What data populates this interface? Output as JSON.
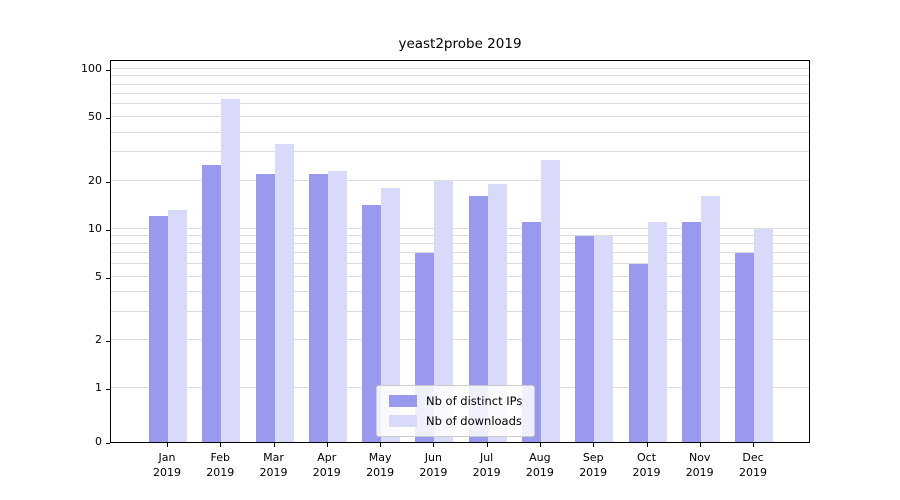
{
  "chart_data": {
    "type": "bar",
    "title": "yeast2probe 2019",
    "categories": [
      "Jan",
      "Feb",
      "Mar",
      "Apr",
      "May",
      "Jun",
      "Jul",
      "Aug",
      "Sep",
      "Oct",
      "Nov",
      "Dec"
    ],
    "year_label": "2019",
    "series": [
      {
        "name": "Nb of distinct IPs",
        "color": "#9999ee",
        "values": [
          12,
          25,
          22,
          22,
          14,
          7,
          16,
          11,
          9,
          6,
          11,
          7
        ]
      },
      {
        "name": "Nb of downloads",
        "color": "#d9d9f9",
        "values": [
          13,
          65,
          34,
          23,
          18,
          20,
          19,
          27,
          9,
          11,
          16,
          10
        ]
      }
    ],
    "yticks": [
      0,
      1,
      2,
      5,
      10,
      20,
      50,
      100
    ],
    "gridlines": [
      1,
      2,
      3,
      4,
      5,
      6,
      7,
      8,
      9,
      10,
      20,
      30,
      40,
      50,
      60,
      70,
      80,
      90,
      100
    ],
    "ylim": [
      0,
      100
    ],
    "yscale": "symlog",
    "grid": "on",
    "legend_position": "lower center",
    "grid_color": "#dcdcdc",
    "axis_color": "#000000",
    "background_color": "#ffffff"
  }
}
